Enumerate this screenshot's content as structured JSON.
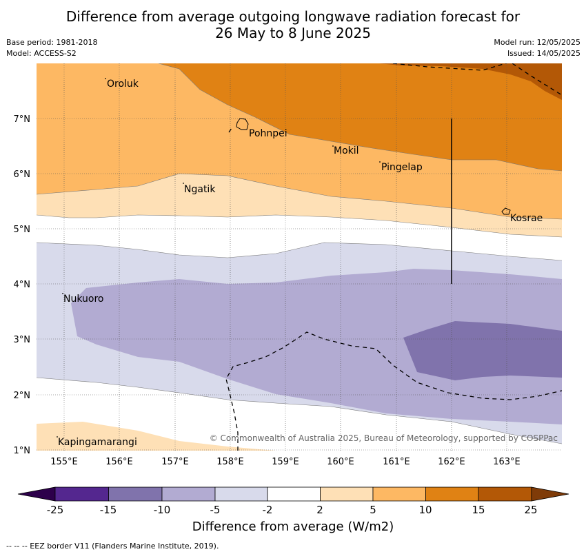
{
  "header": {
    "title_line1": "Difference from average outgoing longwave radiation forecast for",
    "title_line2": "26 May to 8 June 2025",
    "base_period": "Base period: 1981-2018",
    "model": "Model: ACCESS-S2",
    "model_run": "Model run: 12/05/2025",
    "issued": "Issued: 14/05/2025"
  },
  "map": {
    "lat_labels": [
      "7°N",
      "6°N",
      "5°N",
      "4°N",
      "3°N",
      "2°N",
      "1°N"
    ],
    "lon_labels": [
      "155°E",
      "156°E",
      "157°E",
      "158°E",
      "159°E",
      "160°E",
      "161°E",
      "162°E",
      "163°E"
    ],
    "places": {
      "oroluk": "Oroluk",
      "pohnpei": "Pohnpei",
      "mokil": "Mokil",
      "pingelap": "Pingelap",
      "ngatik": "Ngatik",
      "kosrae": "Kosrae",
      "nukuoro": "Nukuoro",
      "kapingamarangi": "Kapingamarangi"
    },
    "copyright": "© Commonwealth of Australia 2025, Bureau of Meteorology, supported by COSPPac",
    "colors": {
      "c_-25_-15": "#54278f",
      "c_-15_-10": "#8073ac",
      "c_-10_-5": "#b2abd2",
      "c_-5_-2": "#d8daeb",
      "c_-2_2": "#ffffff",
      "c_2_5": "#fee0b6",
      "c_5_10": "#fdb863",
      "c_10_15": "#e08214",
      "c_15_25": "#b35806",
      "under": "#2d004b",
      "over": "#7f3b08"
    }
  },
  "colorbar": {
    "ticks": [
      "-25",
      "-15",
      "-10",
      "-5",
      "-2",
      "2",
      "5",
      "10",
      "15",
      "25"
    ],
    "label": "Difference from average (W/m2)"
  },
  "footnote": "--  --  -- EEZ border V11 (Flanders Marine Institute, 2019)."
}
